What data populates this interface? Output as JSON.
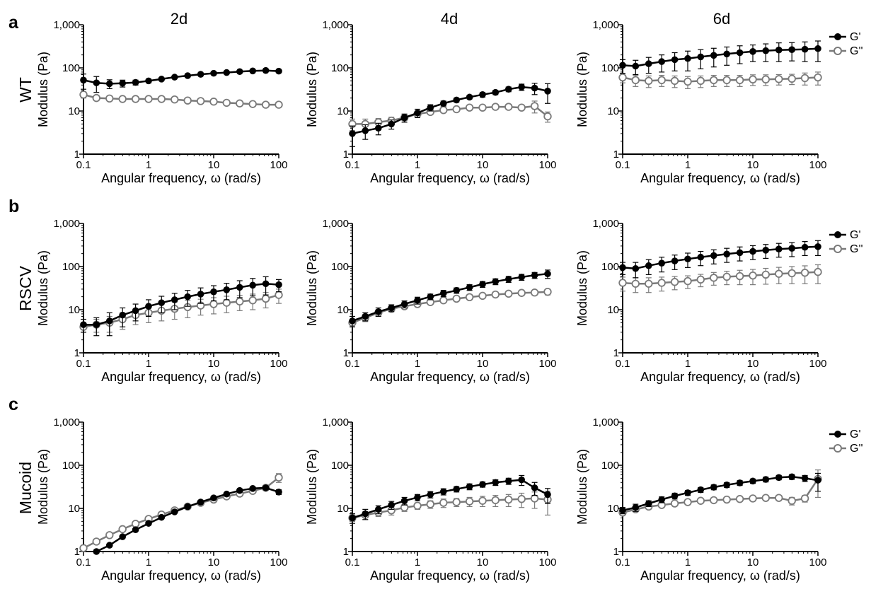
{
  "figure": {
    "panel_letters": [
      "a",
      "b",
      "c"
    ],
    "column_titles": [
      "2d",
      "4d",
      "6d"
    ],
    "row_labels": [
      "WT",
      "RSCV",
      "Mucoid"
    ]
  },
  "legend": {
    "entries": [
      {
        "label": "G'",
        "color": "#000000",
        "marker": "filled-circle"
      },
      {
        "label": "G''",
        "color": "#7a7a7a",
        "marker": "open-circle"
      }
    ],
    "placement": "right of 6d column"
  },
  "colors": {
    "g_prime": "#000000",
    "g_double_prime": "#7a7a7a"
  },
  "chart_data": [
    {
      "type": "line",
      "row": "WT",
      "column": "2d",
      "xscale": "log",
      "yscale": "log",
      "xlabel": "Angular frequency, ω (rad/s)",
      "ylabel": "Modulus (Pa)",
      "xlim": [
        0.1,
        100
      ],
      "ylim": [
        1,
        1000
      ],
      "xticks": [
        "0.1",
        "1",
        "10",
        "100"
      ],
      "yticks": [
        "1",
        "10",
        "100",
        "1,000"
      ],
      "x": [
        0.1,
        0.158,
        0.251,
        0.398,
        0.631,
        1,
        1.58,
        2.51,
        3.98,
        6.31,
        10,
        15.8,
        25.1,
        39.8,
        63.1,
        100
      ],
      "series": [
        {
          "name": "G'",
          "values": [
            52,
            45,
            43,
            44,
            46,
            50,
            55,
            61,
            66,
            71,
            75,
            78,
            82,
            85,
            87,
            84
          ],
          "errors": [
            20,
            18,
            10,
            8,
            6,
            5,
            4,
            4,
            4,
            4,
            4,
            4,
            4,
            4,
            4,
            4
          ]
        },
        {
          "name": "G''",
          "values": [
            24,
            20,
            19.5,
            19,
            19,
            19,
            19,
            18.5,
            17.5,
            17,
            16.5,
            15.5,
            15,
            14.5,
            14,
            14
          ],
          "errors": [
            4,
            2,
            1,
            1,
            1,
            1,
            1,
            1,
            1,
            1,
            1,
            1,
            1,
            1,
            1,
            1
          ]
        }
      ]
    },
    {
      "type": "line",
      "row": "WT",
      "column": "4d",
      "xscale": "log",
      "yscale": "log",
      "xlabel": "Angular frequency, ω (rad/s)",
      "ylabel": "Modulus (Pa)",
      "xlim": [
        0.1,
        100
      ],
      "ylim": [
        1,
        1000
      ],
      "xticks": [
        "0.1",
        "1",
        "10",
        "100"
      ],
      "yticks": [
        "1",
        "10",
        "100",
        "1,000"
      ],
      "x": [
        0.1,
        0.158,
        0.251,
        0.398,
        0.631,
        1,
        1.58,
        2.51,
        3.98,
        6.31,
        10,
        15.8,
        25.1,
        39.8,
        63.1,
        100
      ],
      "series": [
        {
          "name": "G'",
          "values": [
            3,
            3.5,
            4,
            5,
            7,
            9,
            12,
            15,
            18,
            21,
            24,
            27,
            32,
            36,
            34,
            29
          ],
          "errors": [
            1.5,
            1.3,
            1.2,
            1.2,
            1.5,
            2,
            2,
            2,
            2,
            2,
            3,
            3,
            4,
            6,
            10,
            14
          ]
        },
        {
          "name": "G''",
          "values": [
            5,
            5,
            5.5,
            6,
            7,
            8.5,
            9.5,
            10.5,
            11,
            12,
            12,
            12.5,
            12.5,
            12,
            13,
            7.5
          ],
          "errors": [
            1.5,
            1.5,
            1.2,
            1.2,
            1,
            1,
            1,
            1,
            1,
            1,
            1,
            1,
            1,
            1,
            4,
            2
          ]
        }
      ]
    },
    {
      "type": "line",
      "row": "WT",
      "column": "6d",
      "xscale": "log",
      "yscale": "log",
      "xlabel": "Angular frequency, ω (rad/s)",
      "ylabel": "Modulus (Pa)",
      "xlim": [
        0.1,
        100
      ],
      "ylim": [
        1,
        1000
      ],
      "xticks": [
        "0.1",
        "1",
        "10",
        "100"
      ],
      "yticks": [
        "1",
        "10",
        "100",
        "1,000"
      ],
      "x": [
        0.1,
        0.158,
        0.251,
        0.398,
        0.631,
        1,
        1.58,
        2.51,
        3.98,
        6.31,
        10,
        15.8,
        25.1,
        39.8,
        63.1,
        100
      ],
      "series": [
        {
          "name": "G'",
          "values": [
            115,
            110,
            125,
            140,
            155,
            165,
            180,
            195,
            210,
            225,
            240,
            250,
            260,
            265,
            270,
            280
          ],
          "errors": [
            40,
            40,
            50,
            60,
            70,
            80,
            85,
            90,
            95,
            100,
            100,
            110,
            120,
            120,
            130,
            140
          ]
        },
        {
          "name": "G''",
          "values": [
            60,
            52,
            50,
            52,
            50,
            48,
            50,
            52,
            52,
            52,
            54,
            54,
            55,
            56,
            58,
            60
          ],
          "errors": [
            15,
            15,
            15,
            15,
            15,
            15,
            15,
            15,
            15,
            15,
            15,
            15,
            15,
            15,
            18,
            20
          ]
        }
      ]
    },
    {
      "type": "line",
      "row": "RSCV",
      "column": "2d",
      "xscale": "log",
      "yscale": "log",
      "xlabel": "Angular frequency, ω (rad/s)",
      "ylabel": "Modulus (Pa)",
      "xlim": [
        0.1,
        100
      ],
      "ylim": [
        1,
        1000
      ],
      "xticks": [
        "0.1",
        "1",
        "10",
        "100"
      ],
      "yticks": [
        "1",
        "10",
        "100",
        "1,000"
      ],
      "x": [
        0.1,
        0.158,
        0.251,
        0.398,
        0.631,
        1,
        1.58,
        2.51,
        3.98,
        6.31,
        10,
        15.8,
        25.1,
        39.8,
        63.1,
        100
      ],
      "series": [
        {
          "name": "G'",
          "values": [
            4.5,
            4.5,
            5.5,
            7.5,
            9.5,
            12,
            14.5,
            17,
            20,
            23,
            26,
            29,
            33,
            37,
            40,
            38
          ],
          "errors": [
            1.5,
            2,
            3,
            3.5,
            4,
            5,
            6,
            7,
            8,
            9,
            10,
            12,
            14,
            16,
            18,
            12
          ]
        },
        {
          "name": "G''",
          "values": [
            4,
            4.5,
            5,
            6,
            7.5,
            8.5,
            9.5,
            10.5,
            11.5,
            12.5,
            13.5,
            14.5,
            15.5,
            16.5,
            18,
            22
          ],
          "errors": [
            1,
            1.5,
            2,
            2.5,
            3,
            3.5,
            4,
            4.5,
            5,
            5,
            5.5,
            6,
            6,
            6.5,
            7,
            8
          ]
        }
      ]
    },
    {
      "type": "line",
      "row": "RSCV",
      "column": "4d",
      "xscale": "log",
      "yscale": "log",
      "xlabel": "Angular frequency, ω (rad/s)",
      "ylabel": "Modulus (Pa)",
      "xlim": [
        0.1,
        100
      ],
      "ylim": [
        1,
        1000
      ],
      "xticks": [
        "0.1",
        "1",
        "10",
        "100"
      ],
      "yticks": [
        "1",
        "10",
        "100",
        "1,000"
      ],
      "x": [
        0.1,
        0.158,
        0.251,
        0.398,
        0.631,
        1,
        1.58,
        2.51,
        3.98,
        6.31,
        10,
        15.8,
        25.1,
        39.8,
        63.1,
        100
      ],
      "series": [
        {
          "name": "G'",
          "values": [
            5.5,
            7,
            9,
            11,
            13.5,
            16.5,
            20,
            24,
            28,
            33,
            39,
            45,
            51,
            57,
            63,
            68
          ],
          "errors": [
            1.5,
            1.5,
            2,
            2,
            2.5,
            3,
            3,
            4,
            4,
            5,
            6,
            7,
            8,
            9,
            10,
            15
          ]
        },
        {
          "name": "G''",
          "values": [
            5,
            6.5,
            8.5,
            10.5,
            12,
            13.5,
            15,
            16.5,
            18,
            19.5,
            21,
            22.5,
            23.5,
            24.5,
            25,
            26
          ],
          "errors": [
            1,
            1.2,
            1.5,
            1.5,
            1.5,
            1.5,
            1.5,
            1.5,
            2,
            2,
            2,
            2,
            2.5,
            3,
            3,
            4
          ]
        }
      ]
    },
    {
      "type": "line",
      "row": "RSCV",
      "column": "6d",
      "xscale": "log",
      "yscale": "log",
      "xlabel": "Angular frequency, ω (rad/s)",
      "ylabel": "Modulus (Pa)",
      "xlim": [
        0.1,
        100
      ],
      "ylim": [
        1,
        1000
      ],
      "xticks": [
        "0.1",
        "1",
        "10",
        "100"
      ],
      "yticks": [
        "1",
        "10",
        "100",
        "1,000"
      ],
      "x": [
        0.1,
        0.158,
        0.251,
        0.398,
        0.631,
        1,
        1.58,
        2.51,
        3.98,
        6.31,
        10,
        15.8,
        25.1,
        39.8,
        63.1,
        100
      ],
      "series": [
        {
          "name": "G'",
          "values": [
            95,
            90,
            105,
            120,
            135,
            150,
            165,
            180,
            195,
            210,
            225,
            240,
            255,
            265,
            280,
            290
          ],
          "errors": [
            30,
            35,
            40,
            45,
            50,
            55,
            60,
            65,
            70,
            75,
            80,
            85,
            90,
            95,
            100,
            110
          ]
        },
        {
          "name": "G''",
          "values": [
            42,
            40,
            40,
            42,
            44,
            46,
            50,
            55,
            58,
            60,
            62,
            65,
            68,
            70,
            72,
            75
          ],
          "errors": [
            15,
            15,
            15,
            15,
            15,
            15,
            16,
            18,
            20,
            22,
            24,
            26,
            28,
            30,
            32,
            35
          ]
        }
      ]
    },
    {
      "type": "line",
      "row": "Mucoid",
      "column": "2d",
      "xscale": "log",
      "yscale": "log",
      "xlabel": "Angular frequency, ω (rad/s)",
      "ylabel": "Modulus (Pa)",
      "xlim": [
        0.1,
        100
      ],
      "ylim": [
        1,
        1000
      ],
      "xticks": [
        "0.1",
        "1",
        "10",
        "100"
      ],
      "yticks": [
        "1",
        "10",
        "100",
        "1,000"
      ],
      "x": [
        0.1,
        0.158,
        0.251,
        0.398,
        0.631,
        1,
        1.58,
        2.51,
        3.98,
        6.31,
        10,
        15.8,
        25.1,
        39.8,
        63.1,
        100
      ],
      "series": [
        {
          "name": "G'",
          "values": [
            0.7,
            1.0,
            1.4,
            2.2,
            3.2,
            4.5,
            6.2,
            8.3,
            11,
            14,
            17.5,
            21.5,
            26,
            29,
            30,
            24
          ],
          "errors": [
            0.05,
            0.08,
            0.1,
            0.15,
            0.2,
            0.3,
            0.3,
            0.4,
            0.5,
            0.6,
            0.8,
            1,
            1.5,
            2,
            3,
            3
          ]
        },
        {
          "name": "G''",
          "values": [
            1.2,
            1.7,
            2.4,
            3.3,
            4.4,
            5.7,
            7.2,
            9,
            11,
            13.5,
            16,
            19,
            22,
            25.5,
            30,
            52
          ],
          "errors": [
            0.1,
            0.1,
            0.15,
            0.2,
            0.3,
            0.3,
            0.4,
            0.5,
            0.6,
            0.8,
            1,
            1.2,
            1.5,
            2,
            3,
            12
          ]
        }
      ]
    },
    {
      "type": "line",
      "row": "Mucoid",
      "column": "4d",
      "xscale": "log",
      "yscale": "log",
      "xlabel": "Angular frequency, ω (rad/s)",
      "ylabel": "Modulus (Pa)",
      "xlim": [
        0.1,
        100
      ],
      "ylim": [
        1,
        1000
      ],
      "xticks": [
        "0.1",
        "1",
        "10",
        "100"
      ],
      "yticks": [
        "1",
        "10",
        "100",
        "1,000"
      ],
      "x": [
        0.1,
        0.158,
        0.251,
        0.398,
        0.631,
        1,
        1.58,
        2.51,
        3.98,
        6.31,
        10,
        15.8,
        25.1,
        39.8,
        63.1,
        100
      ],
      "series": [
        {
          "name": "G'",
          "values": [
            6,
            7.5,
            9.5,
            12,
            15,
            18,
            21,
            24.5,
            28,
            32,
            36,
            40,
            43,
            46,
            30,
            21
          ],
          "errors": [
            1.5,
            2,
            2,
            2.5,
            3,
            3,
            3.5,
            4,
            4,
            5,
            5,
            6,
            7,
            12,
            10,
            8
          ]
        },
        {
          "name": "G''",
          "values": [
            6,
            7,
            8,
            9,
            10.5,
            11.5,
            12.5,
            13.5,
            14,
            14.5,
            15,
            15.5,
            16,
            16.5,
            17,
            16
          ],
          "errors": [
            1,
            1.5,
            1.5,
            2,
            2,
            2,
            2.5,
            3,
            3,
            3.5,
            4,
            4.5,
            5,
            6,
            7,
            9
          ]
        }
      ]
    },
    {
      "type": "line",
      "row": "Mucoid",
      "column": "6d",
      "xscale": "log",
      "yscale": "log",
      "xlabel": "Angular frequency, ω (rad/s)",
      "ylabel": "Modulus (Pa)",
      "xlim": [
        0.1,
        100
      ],
      "ylim": [
        1,
        1000
      ],
      "xticks": [
        "0.1",
        "1",
        "10",
        "100"
      ],
      "yticks": [
        "1",
        "10",
        "100",
        "1,000"
      ],
      "x": [
        0.1,
        0.158,
        0.251,
        0.398,
        0.631,
        1,
        1.58,
        2.51,
        3.98,
        6.31,
        10,
        15.8,
        25.1,
        39.8,
        63.1,
        100
      ],
      "series": [
        {
          "name": "G'",
          "values": [
            9,
            10.5,
            13,
            16,
            19.5,
            23,
            27,
            31,
            35,
            39,
            43,
            47,
            52,
            54,
            50,
            45
          ],
          "errors": [
            1.5,
            2,
            2,
            2.5,
            3,
            3,
            3.5,
            4,
            4.5,
            5,
            5,
            6,
            6,
            7,
            8,
            20
          ]
        },
        {
          "name": "G''",
          "values": [
            8,
            9.5,
            11,
            12,
            13,
            14,
            15,
            15.5,
            16,
            16.5,
            17,
            17.5,
            17.5,
            15,
            17,
            48
          ],
          "errors": [
            1,
            1,
            1,
            1,
            1,
            1,
            1,
            1,
            1,
            1,
            1,
            1,
            1.5,
            3,
            3,
            30
          ]
        }
      ]
    }
  ]
}
